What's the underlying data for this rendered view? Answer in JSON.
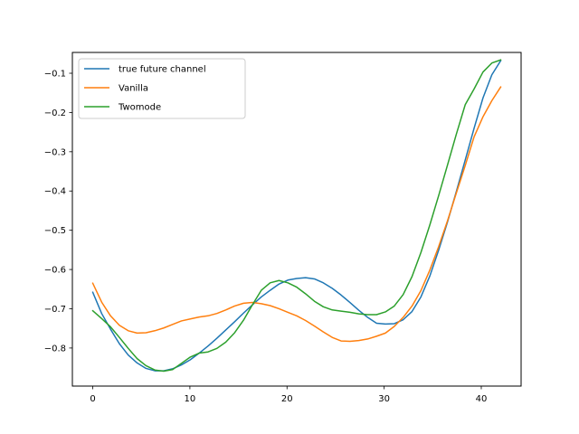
{
  "chart_data": {
    "type": "line",
    "title": "",
    "xlabel": "",
    "ylabel": "",
    "xlim": [
      -2.1,
      44.1
    ],
    "ylim": [
      -0.897,
      -0.047
    ],
    "xticks": [
      0,
      10,
      20,
      30,
      40
    ],
    "yticks": [
      -0.8,
      -0.7,
      -0.6,
      -0.5,
      -0.4,
      -0.3,
      -0.2,
      -0.1
    ],
    "grid": false,
    "legend_position": "upper-left",
    "series": [
      {
        "name": "true future channel",
        "color": "#1f77b4",
        "values": [
          -0.658,
          -0.712,
          -0.752,
          -0.789,
          -0.818,
          -0.838,
          -0.852,
          -0.858,
          -0.858,
          -0.853,
          -0.843,
          -0.83,
          -0.813,
          -0.795,
          -0.775,
          -0.754,
          -0.733,
          -0.711,
          -0.69,
          -0.67,
          -0.653,
          -0.637,
          -0.627,
          -0.623,
          -0.621,
          -0.624,
          -0.634,
          -0.648,
          -0.665,
          -0.684,
          -0.704,
          -0.722,
          -0.737,
          -0.739,
          -0.738,
          -0.728,
          -0.707,
          -0.67,
          -0.617,
          -0.551,
          -0.479,
          -0.401,
          -0.321,
          -0.24,
          -0.163,
          -0.104,
          -0.068
        ]
      },
      {
        "name": "Vanilla",
        "color": "#ff7f0e",
        "values": [
          -0.635,
          -0.683,
          -0.718,
          -0.742,
          -0.756,
          -0.762,
          -0.761,
          -0.756,
          -0.749,
          -0.74,
          -0.731,
          -0.726,
          -0.721,
          -0.718,
          -0.712,
          -0.703,
          -0.693,
          -0.686,
          -0.684,
          -0.687,
          -0.692,
          -0.7,
          -0.709,
          -0.718,
          -0.73,
          -0.744,
          -0.759,
          -0.773,
          -0.782,
          -0.783,
          -0.781,
          -0.777,
          -0.77,
          -0.762,
          -0.745,
          -0.722,
          -0.693,
          -0.654,
          -0.602,
          -0.542,
          -0.476,
          -0.405,
          -0.335,
          -0.262,
          -0.211,
          -0.17,
          -0.135
        ]
      },
      {
        "name": "Twomode",
        "color": "#2ca02c",
        "values": [
          -0.705,
          -0.725,
          -0.746,
          -0.773,
          -0.801,
          -0.827,
          -0.845,
          -0.856,
          -0.859,
          -0.855,
          -0.839,
          -0.823,
          -0.813,
          -0.81,
          -0.801,
          -0.785,
          -0.761,
          -0.729,
          -0.69,
          -0.653,
          -0.634,
          -0.628,
          -0.634,
          -0.645,
          -0.662,
          -0.681,
          -0.695,
          -0.703,
          -0.706,
          -0.709,
          -0.713,
          -0.715,
          -0.715,
          -0.708,
          -0.693,
          -0.664,
          -0.618,
          -0.557,
          -0.487,
          -0.412,
          -0.334,
          -0.255,
          -0.18,
          -0.14,
          -0.097,
          -0.074,
          -0.066
        ]
      }
    ]
  }
}
